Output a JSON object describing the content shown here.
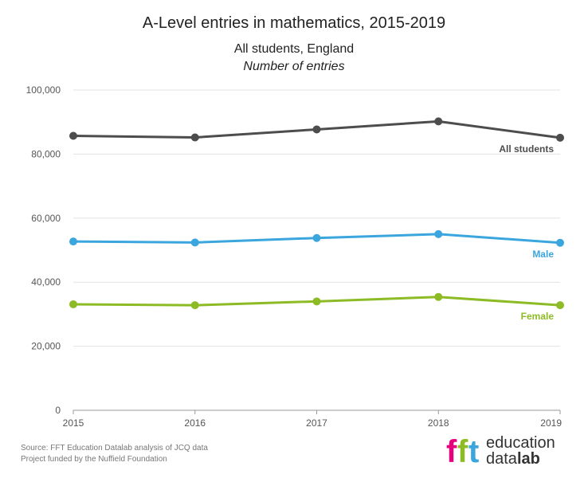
{
  "title": "A-Level entries in mathematics, 2015-2019",
  "subtitle": "All students, England",
  "subtitle2": "Number of entries",
  "chart_data": {
    "type": "line",
    "x": [
      "2015",
      "2016",
      "2017",
      "2018",
      "2019"
    ],
    "ylim": [
      0,
      100000
    ],
    "yticks": [
      0,
      20000,
      40000,
      60000,
      80000,
      100000
    ],
    "ytick_labels": [
      "0",
      "20,000",
      "40,000",
      "60,000",
      "80,000",
      "100,000"
    ],
    "grid": true,
    "series": [
      {
        "name": "All students",
        "color": "#4d4d4d",
        "values": [
          85700,
          85200,
          87700,
          90200,
          85100
        ]
      },
      {
        "name": "Male",
        "color": "#3aa6dd",
        "values": [
          52700,
          52400,
          53800,
          55000,
          52300
        ]
      },
      {
        "name": "Female",
        "color": "#8dbb25",
        "values": [
          33100,
          32800,
          34000,
          35400,
          32800
        ]
      }
    ]
  },
  "footer": {
    "source": "Source: FFT Education Datalab analysis of JCQ data",
    "funded": "Project funded by the Nuffield Foundation"
  },
  "logo": {
    "letters": "fft",
    "word1": "education",
    "word2_a": "data",
    "word2_b": "lab",
    "colors": [
      "#e6007e",
      "#8dbb25",
      "#3aa6dd"
    ]
  }
}
